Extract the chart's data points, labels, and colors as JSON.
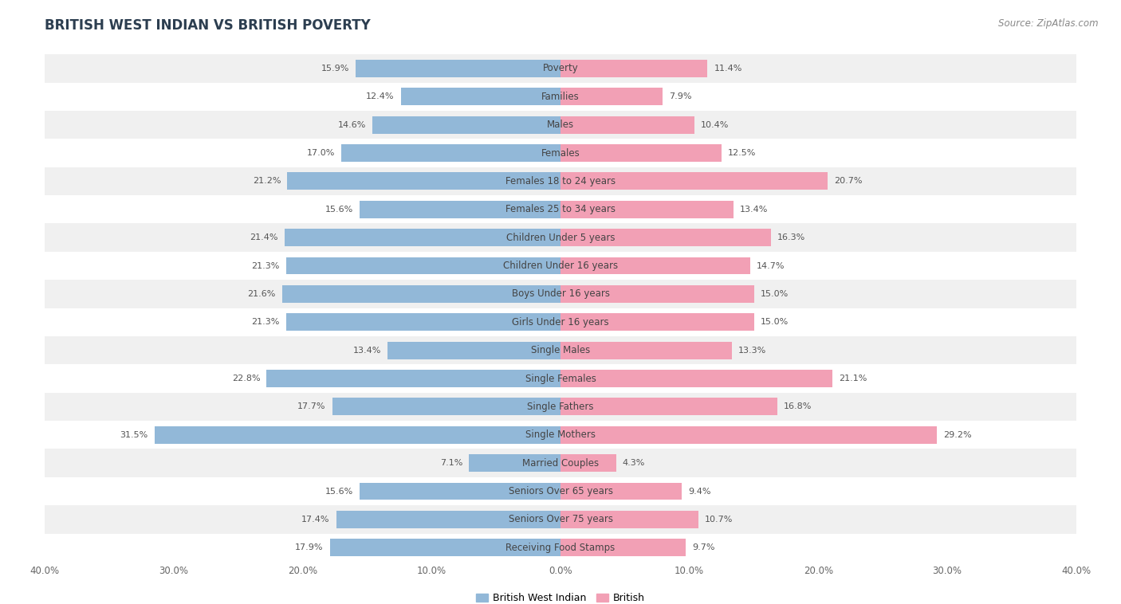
{
  "title": "BRITISH WEST INDIAN VS BRITISH POVERTY",
  "source": "Source: ZipAtlas.com",
  "categories": [
    "Poverty",
    "Families",
    "Males",
    "Females",
    "Females 18 to 24 years",
    "Females 25 to 34 years",
    "Children Under 5 years",
    "Children Under 16 years",
    "Boys Under 16 years",
    "Girls Under 16 years",
    "Single Males",
    "Single Females",
    "Single Fathers",
    "Single Mothers",
    "Married Couples",
    "Seniors Over 65 years",
    "Seniors Over 75 years",
    "Receiving Food Stamps"
  ],
  "left_values": [
    15.9,
    12.4,
    14.6,
    17.0,
    21.2,
    15.6,
    21.4,
    21.3,
    21.6,
    21.3,
    13.4,
    22.8,
    17.7,
    31.5,
    7.1,
    15.6,
    17.4,
    17.9
  ],
  "right_values": [
    11.4,
    7.9,
    10.4,
    12.5,
    20.7,
    13.4,
    16.3,
    14.7,
    15.0,
    15.0,
    13.3,
    21.1,
    16.8,
    29.2,
    4.3,
    9.4,
    10.7,
    9.7
  ],
  "left_color": "#92b8d8",
  "right_color": "#f2a0b5",
  "left_label": "British West Indian",
  "right_label": "British",
  "xlim": 40.0,
  "background_color": "#ffffff",
  "row_bg_even": "#f0f0f0",
  "row_bg_odd": "#ffffff",
  "title_fontsize": 12,
  "label_fontsize": 8.5,
  "value_fontsize": 8,
  "axis_fontsize": 8.5,
  "source_fontsize": 8.5
}
